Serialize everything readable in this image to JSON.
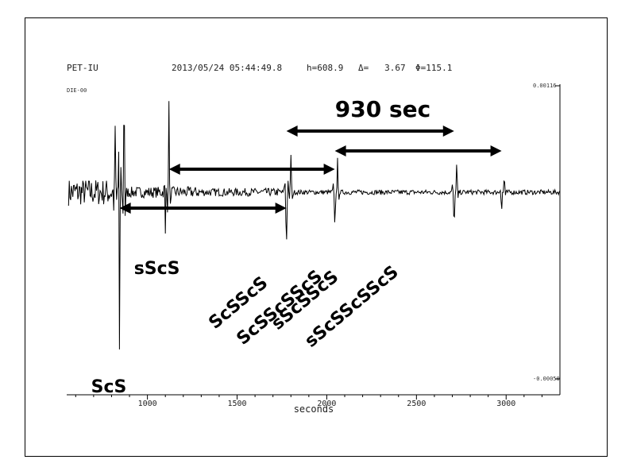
{
  "header": {
    "station": "PET-IU",
    "datetime": "2013/05/24 05:44:49.8",
    "h": "h=608.9",
    "delta": "Δ=   3.67",
    "phi": "Φ=115.1",
    "component": "DIE-00"
  },
  "amplitude": {
    "max": "0.00116",
    "min": "-0.00050"
  },
  "chart_data": {
    "type": "line",
    "xlabel": "seconds",
    "xlim": [
      550,
      3300
    ],
    "xticks": [
      1000,
      1500,
      2000,
      2500,
      3000
    ],
    "phase_labels": [
      {
        "text": "ScS",
        "time": 845
      },
      {
        "text": "sScS",
        "time": 1120
      },
      {
        "text": "ScSScS",
        "time": 1775
      },
      {
        "text": "sScSScS",
        "time": 2045
      },
      {
        "text": "ScSScSScS",
        "time": 2710
      },
      {
        "text": "sScSScSScS",
        "time": 2975
      }
    ],
    "interval_label": "930 sec",
    "interval_arrows": [
      {
        "from": 845,
        "to": 1775
      },
      {
        "from": 1120,
        "to": 2045
      },
      {
        "from": 1775,
        "to": 2710
      },
      {
        "from": 2045,
        "to": 2975
      }
    ]
  }
}
